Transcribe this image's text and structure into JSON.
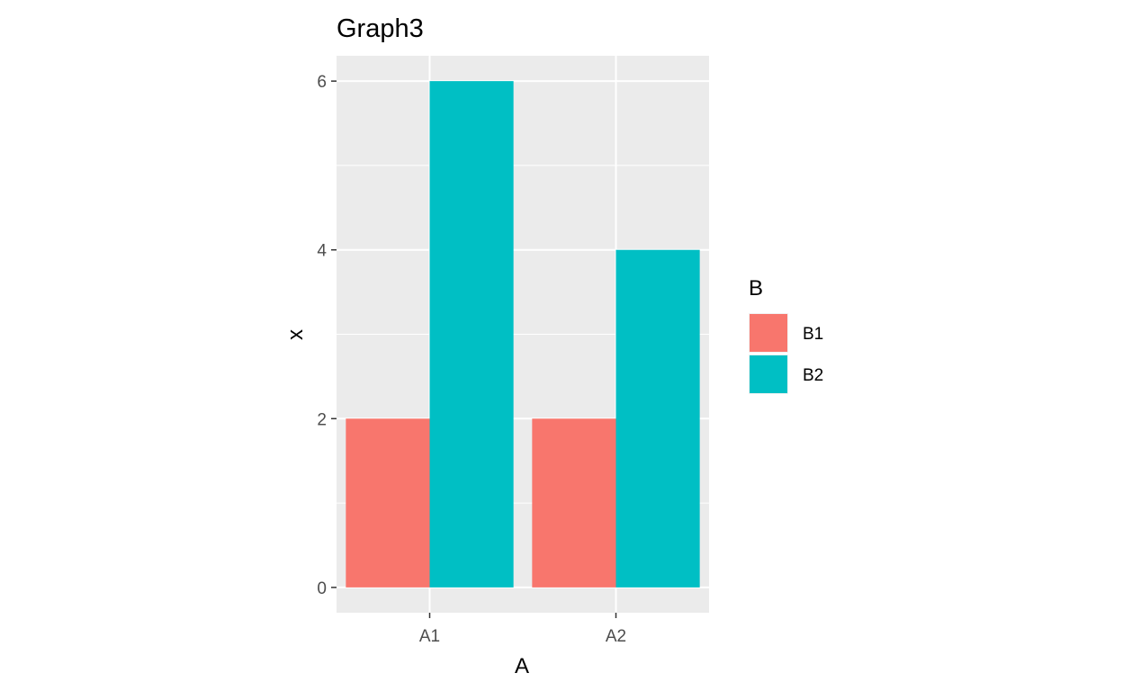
{
  "chart_data": {
    "type": "bar",
    "title": "Graph3",
    "xlabel": "A",
    "ylabel": "x",
    "categories": [
      "A1",
      "A2"
    ],
    "series": [
      {
        "name": "B1",
        "values": [
          2,
          2
        ],
        "color": "#F8766D"
      },
      {
        "name": "B2",
        "values": [
          6,
          4
        ],
        "color": "#00BFC4"
      }
    ],
    "ylim": [
      -0.3,
      6.3
    ],
    "yticks": [
      0,
      2,
      4,
      6
    ],
    "ytick_labels": [
      "0",
      "2",
      "4",
      "6"
    ],
    "legend": {
      "title": "B",
      "position": "right"
    },
    "grid": true,
    "panel_background": "#EBEBEB",
    "grid_color": "#FFFFFF"
  }
}
